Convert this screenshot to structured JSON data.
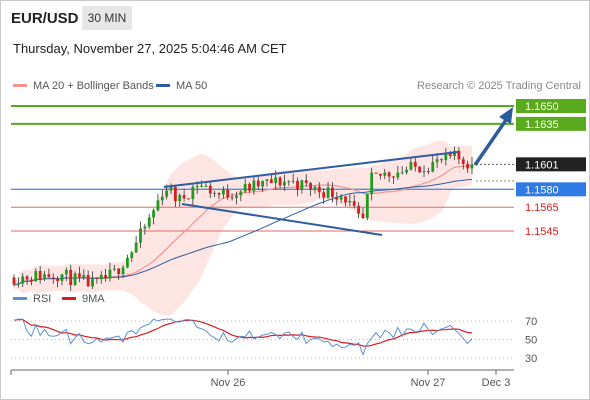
{
  "header": {
    "symbol": "EUR/USD",
    "timeframe": "30 MIN",
    "datetime": "Thursday, November 27, 2025 5:04:46 AM CET"
  },
  "legend": {
    "bollinger": {
      "label": "MA 20 + Bollinger Bands",
      "color": "#f2958f"
    },
    "ma50": {
      "label": "MA 50",
      "color": "#2f5d9f"
    },
    "copyright": "Research © 2025 Trading Central"
  },
  "colors": {
    "up": "#1f9b1f",
    "down": "#d42020",
    "target": "#5aaa1e",
    "pivot": "#5b8ed6",
    "support": "#e26a6a",
    "arrow": "#2c5c9c",
    "band_fill": "#fde0de",
    "channel": "#2f5d9f"
  },
  "chart_data": [
    {
      "type": "candlestick",
      "title": "",
      "series": [
        {
          "name": "MA 20 + Bollinger Bands"
        },
        {
          "name": "MA 50"
        }
      ],
      "levels": [
        {
          "label": "1.1650",
          "value": 1.165,
          "kind": "target"
        },
        {
          "label": "1.1635",
          "value": 1.1635,
          "kind": "target"
        },
        {
          "label": "1.1601",
          "value": 1.1601,
          "kind": "last"
        },
        {
          "label": "1.1580",
          "value": 1.158,
          "kind": "pivot"
        },
        {
          "label": "1.1565",
          "value": 1.1565,
          "kind": "support"
        },
        {
          "label": "1.1545",
          "value": 1.1545,
          "kind": "support"
        }
      ],
      "x_ticks": [
        "Nov 26",
        "Nov 27",
        "Dec 3"
      ],
      "ylim": [
        1.1497,
        1.1655
      ]
    },
    {
      "type": "line",
      "title": "",
      "series": [
        {
          "name": "RSI",
          "color": "#5b8ed6"
        },
        {
          "name": "9MA",
          "color": "#d42020"
        }
      ],
      "y_ticks": [
        "70",
        "50",
        "30"
      ],
      "ylim": [
        20,
        80
      ]
    }
  ]
}
